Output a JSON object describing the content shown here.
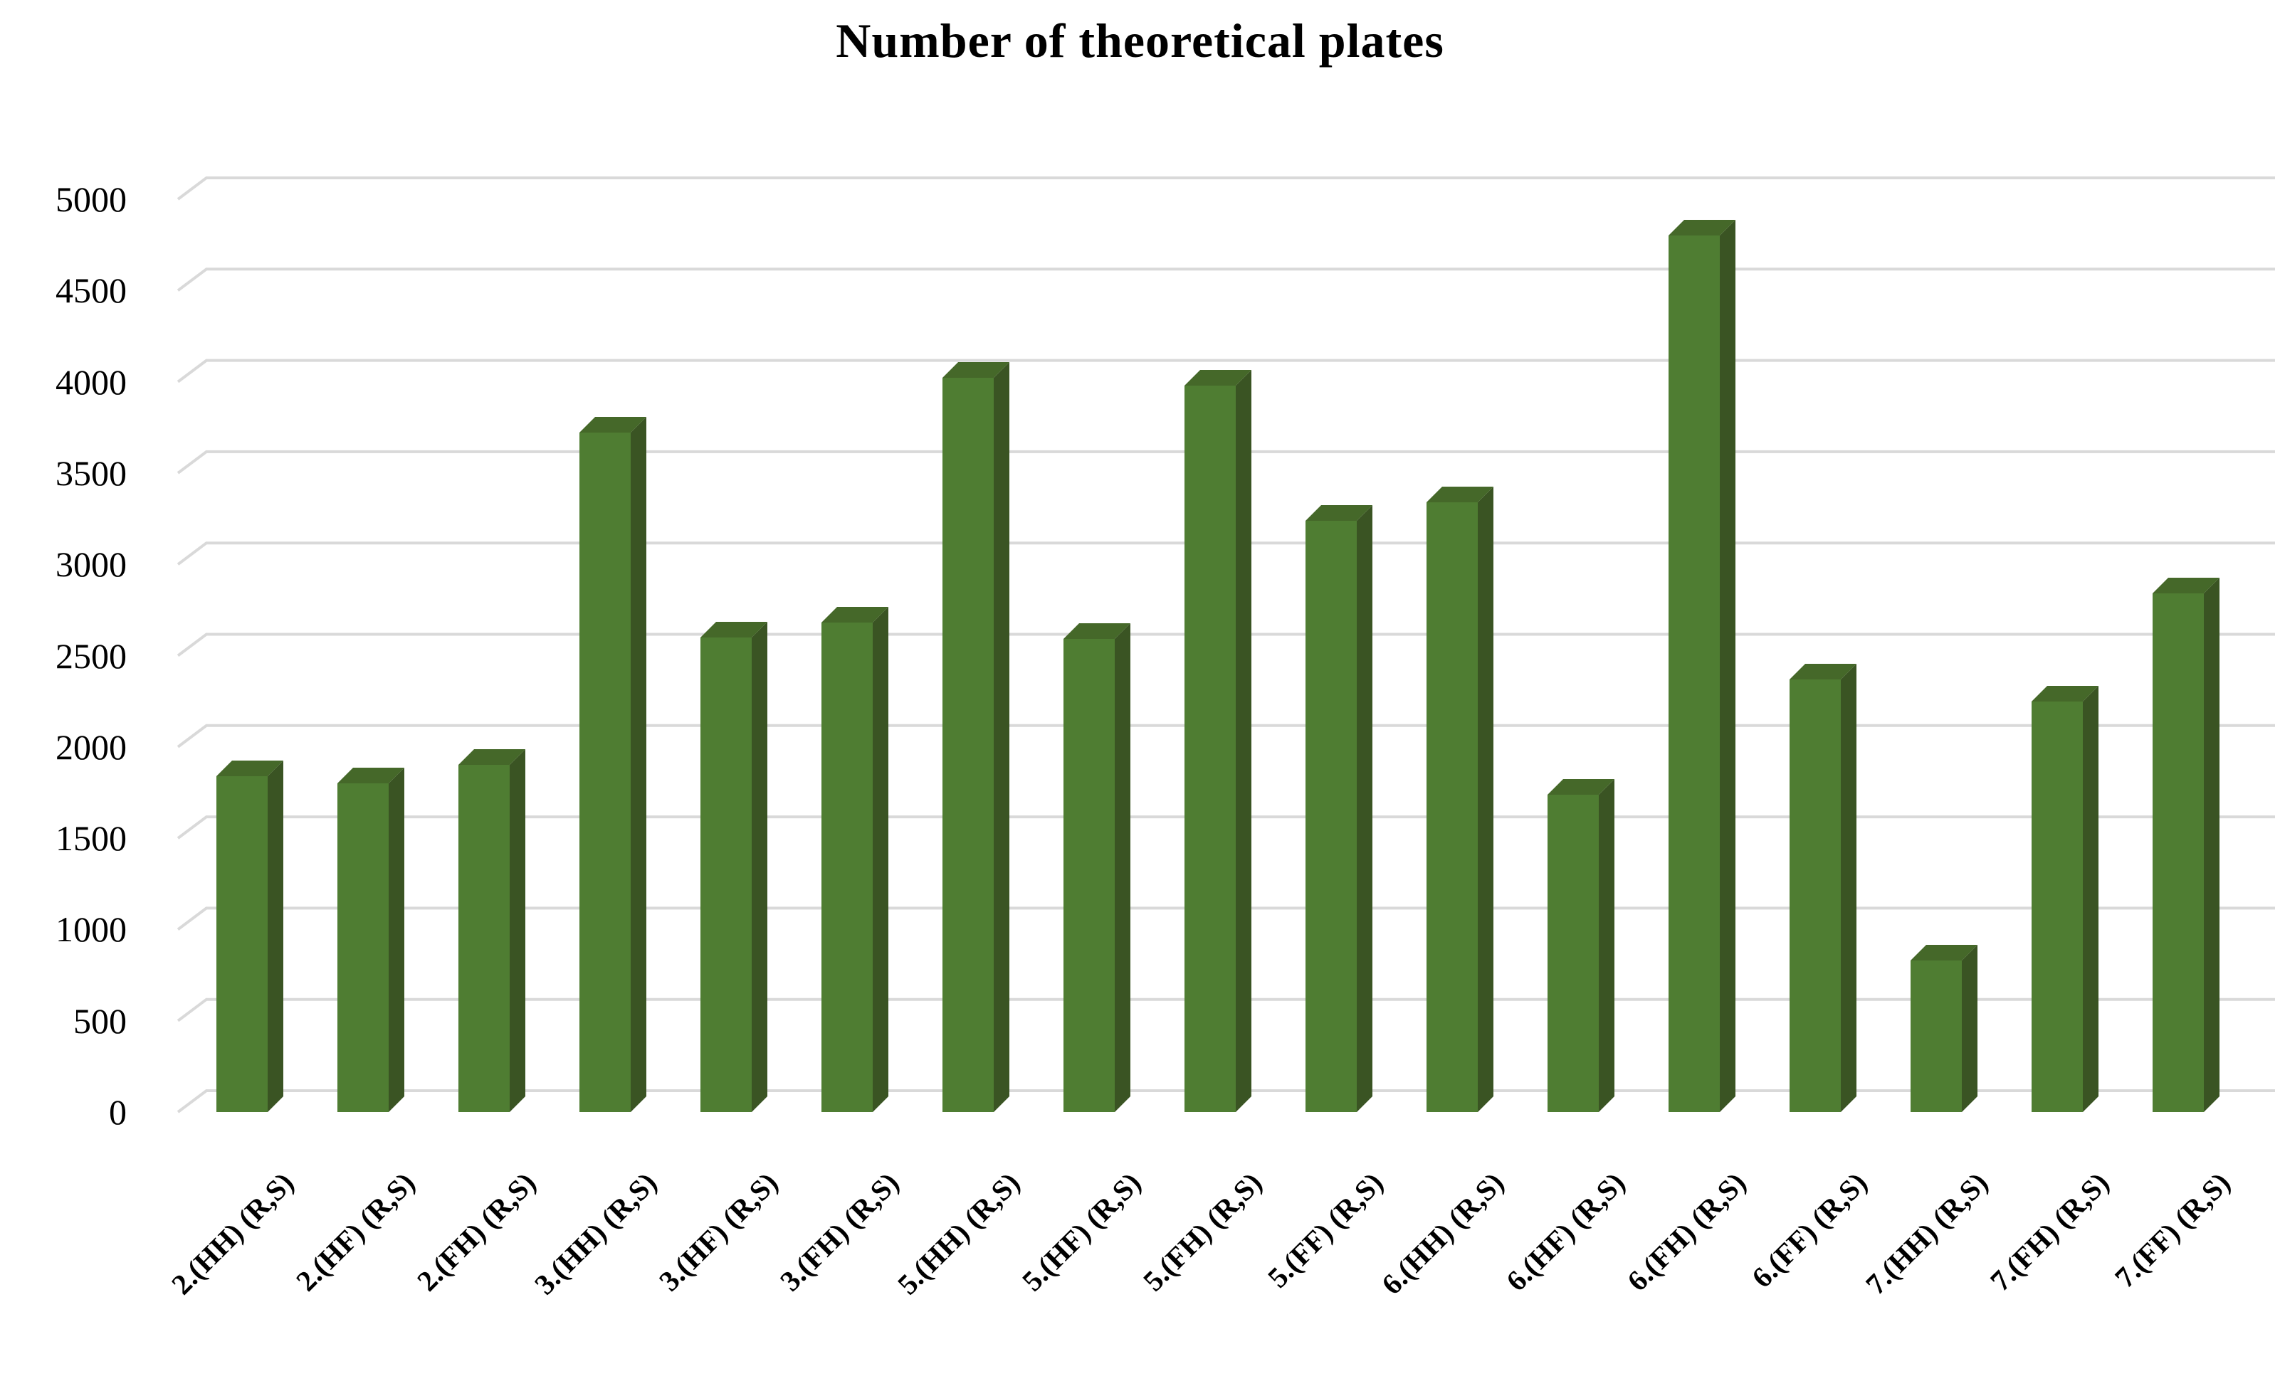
{
  "chart_data": {
    "type": "bar",
    "style": "3d-column",
    "title": "Number of theoretical plates",
    "categories": [
      "2.(HH) (R,S)",
      "2.(HF) (R,S)",
      "2.(FH) (R,S)",
      "3.(HH) (R,S)",
      "3.(HF) (R,S)",
      "3.(FH) (R,S)",
      "5.(HH) (R,S)",
      "5.(HF) (R,S)",
      "5.(FH) (R,S)",
      "5.(FF) (R,S)",
      "6.(HH) (R,S)",
      "6.(HF) (R,S)",
      "6.(FH) (R,S)",
      "6.(FF) (R,S)",
      "7.(HH) (R,S)",
      "7.(FH) (R,S)",
      "7.(FF) (R,S)"
    ],
    "values": [
      1840,
      1800,
      1900,
      3720,
      2600,
      2680,
      4020,
      2590,
      3980,
      3240,
      3340,
      1740,
      4800,
      2370,
      830,
      2250,
      2840
    ],
    "xlabel": "",
    "ylabel": "",
    "ylim": [
      0,
      5000
    ],
    "ytick_step": 500,
    "yticks": [
      0,
      500,
      1000,
      1500,
      2000,
      2500,
      3000,
      3500,
      4000,
      4500,
      5000
    ],
    "legend": "none",
    "grid": true,
    "x_label_rotation_deg": -45,
    "colors": {
      "bar_front": "#4f7d32",
      "bar_top": "#456829",
      "bar_side": "#3a5423",
      "gridline": "#d9d9d9",
      "background": "#ffffff",
      "text": "#000000"
    }
  }
}
